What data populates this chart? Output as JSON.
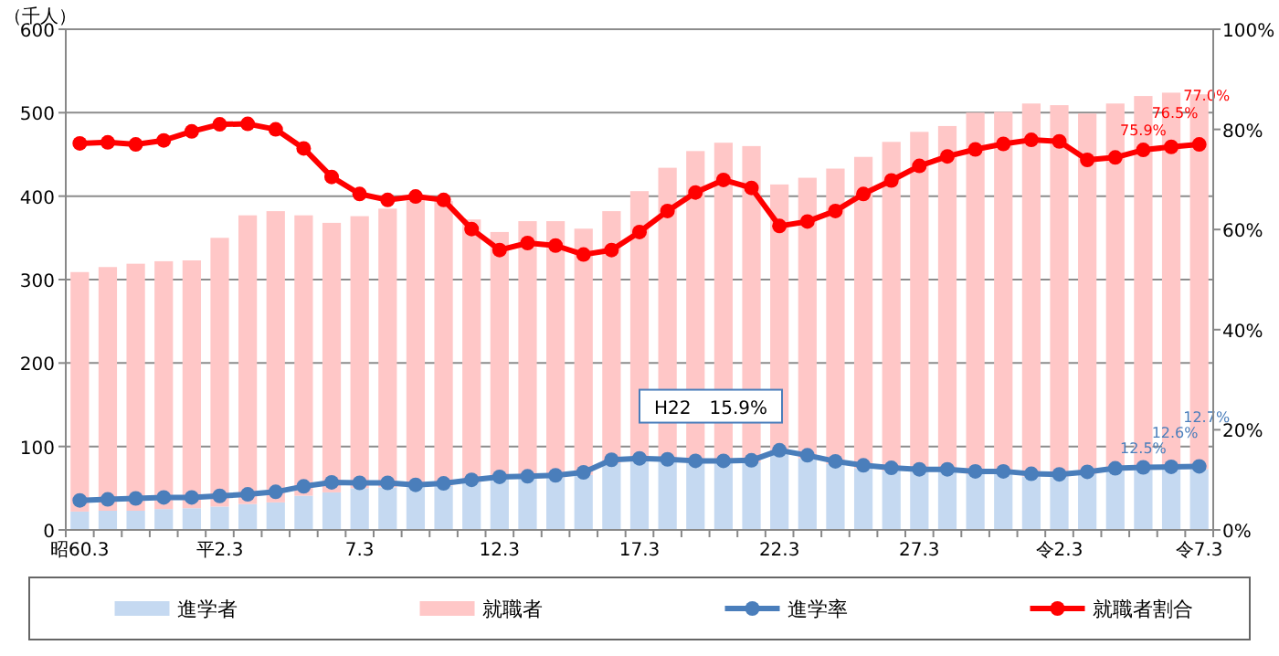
{
  "chart_data": {
    "type": "bar",
    "stacked": true,
    "ylabel": "（千人）",
    "categories": [
      "昭60.3",
      null,
      null,
      null,
      null,
      "平2.3",
      null,
      null,
      null,
      null,
      "7.3",
      null,
      null,
      null,
      null,
      "12.3",
      null,
      null,
      null,
      null,
      "17.3",
      null,
      null,
      null,
      null,
      "22.3",
      null,
      null,
      null,
      null,
      "27.3",
      null,
      null,
      null,
      null,
      "令2.3",
      null,
      null,
      null,
      null,
      "令7.3"
    ],
    "ylim": [
      0,
      600
    ],
    "yticks": [
      0,
      100,
      200,
      300,
      400,
      500,
      600
    ],
    "y2lim": [
      0,
      100
    ],
    "y2ticks": [
      {
        "value": 0,
        "label": "0%"
      },
      {
        "value": 20,
        "label": "20%"
      },
      {
        "value": 40,
        "label": "40%"
      },
      {
        "value": 60,
        "label": "60%"
      },
      {
        "value": 80,
        "label": "80%"
      },
      {
        "value": 100,
        "label": "100%"
      }
    ],
    "grid": "y",
    "legend": "bottom",
    "marker": "circle",
    "series": [
      {
        "name": "進学者",
        "color": "#c5d9f1",
        "values": [
          22,
          23,
          23,
          25,
          26,
          28,
          31,
          33,
          41,
          45,
          50,
          51,
          53,
          53,
          57,
          61,
          62,
          63,
          66,
          80,
          82,
          82,
          80,
          80,
          81,
          91,
          86,
          79,
          74,
          71,
          70,
          70,
          67,
          67,
          64,
          64,
          67,
          71,
          72,
          73,
          73
        ]
      },
      {
        "name": "就職者",
        "color": "#ffc7c7",
        "values": [
          287,
          292,
          296,
          297,
          297,
          322,
          346,
          349,
          336,
          323,
          326,
          334,
          342,
          341,
          315,
          296,
          308,
          307,
          295,
          302,
          324,
          352,
          374,
          384,
          379,
          323,
          336,
          354,
          373,
          394,
          407,
          414,
          433,
          434,
          447,
          445,
          432,
          440,
          448,
          451,
          449
        ]
      },
      {
        "name": "進学率",
        "type": "line",
        "axis": "y2",
        "color": "#4a7ebb",
        "values": [
          5.9,
          6.1,
          6.3,
          6.5,
          6.5,
          6.8,
          7.1,
          7.6,
          8.7,
          9.5,
          9.4,
          9.4,
          9.0,
          9.3,
          10.0,
          10.6,
          10.7,
          10.9,
          11.5,
          14.0,
          14.3,
          14.1,
          13.8,
          13.8,
          13.9,
          15.9,
          14.9,
          13.7,
          12.9,
          12.4,
          12.1,
          12.1,
          11.7,
          11.7,
          11.2,
          11.1,
          11.6,
          12.3,
          12.5,
          12.6,
          12.7
        ],
        "value_labels": [
          null,
          null,
          null,
          null,
          null,
          null,
          null,
          null,
          null,
          null,
          null,
          null,
          null,
          null,
          null,
          null,
          null,
          null,
          null,
          null,
          null,
          null,
          null,
          null,
          null,
          null,
          null,
          null,
          null,
          null,
          null,
          null,
          null,
          null,
          null,
          null,
          null,
          null,
          "12.5%",
          "12.6%",
          "12.7%"
        ]
      },
      {
        "name": "就職者割合",
        "type": "line",
        "axis": "y2",
        "color": "#ff0000",
        "values": [
          77.2,
          77.4,
          77.0,
          77.8,
          79.6,
          81.0,
          81.1,
          80.0,
          76.2,
          70.5,
          67.1,
          65.9,
          66.6,
          65.9,
          60.1,
          55.9,
          57.3,
          56.8,
          55.0,
          55.9,
          59.5,
          63.7,
          67.4,
          69.9,
          68.3,
          60.7,
          61.6,
          63.7,
          67.1,
          69.8,
          72.7,
          74.6,
          76.0,
          77.1,
          77.9,
          77.6,
          73.9,
          74.4,
          75.9,
          76.5,
          77.0
        ],
        "value_labels": [
          null,
          null,
          null,
          null,
          null,
          null,
          null,
          null,
          null,
          null,
          null,
          null,
          null,
          null,
          null,
          null,
          null,
          null,
          null,
          null,
          null,
          null,
          null,
          null,
          null,
          null,
          null,
          null,
          null,
          null,
          null,
          null,
          null,
          null,
          null,
          null,
          null,
          null,
          "75.9%",
          "76.5%",
          "77.0%"
        ]
      }
    ],
    "annotations": [
      "H22　15.9%"
    ]
  }
}
